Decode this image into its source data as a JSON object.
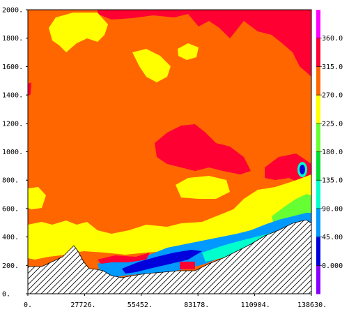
{
  "chart_data": {
    "type": "heatmap",
    "title": "",
    "xlabel": "",
    "ylabel": "",
    "xlim": [
      0,
      138630
    ],
    "ylim": [
      0,
      2000
    ],
    "x_ticks": [
      "0.",
      "27726.",
      "55452.",
      "83178.",
      "110904.",
      "138630."
    ],
    "y_ticks": [
      "0.",
      "200.",
      "400.",
      "600.",
      "800.",
      "1000.",
      "1200.",
      "1400.",
      "1600.",
      "1800.",
      "2000."
    ],
    "colorbar": {
      "tick_labels": [
        "0.000",
        "45.00",
        "90.00",
        "135.0",
        "180.0",
        "225.0",
        "270.0",
        "315.0",
        "360.0"
      ],
      "colors": [
        "#8800ff",
        "#0000dd",
        "#0099ff",
        "#00ffcc",
        "#00dd33",
        "#66ff33",
        "#ffff00",
        "#ff6600",
        "#ff0033",
        "#ff00ff"
      ]
    },
    "grid": false,
    "terrain_fill": "hatched",
    "dominant_band": "270.0-315.0"
  }
}
